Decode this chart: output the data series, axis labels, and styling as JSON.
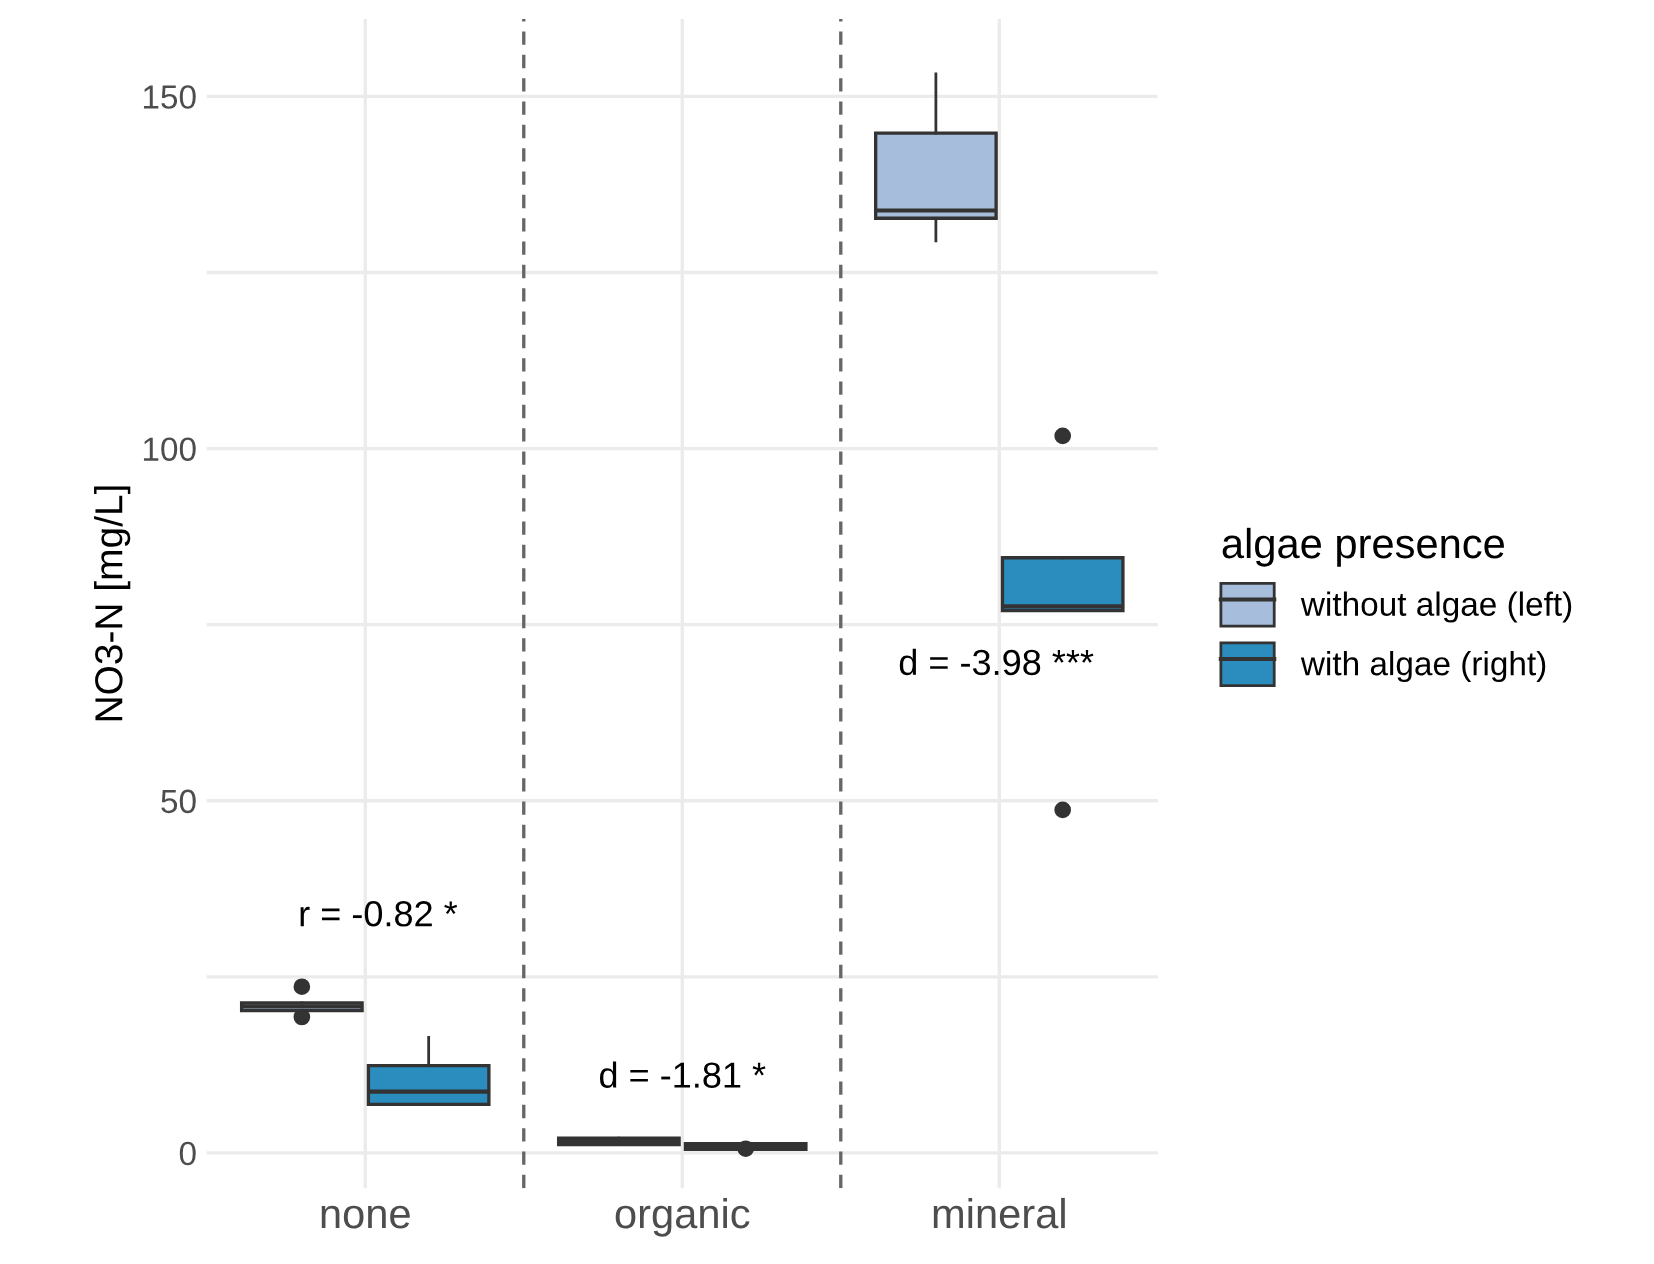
{
  "chart_data": {
    "type": "box",
    "ylabel": "NO3-N [mg/L]",
    "legend_title": "algae presence",
    "categories": [
      "none",
      "organic",
      "mineral"
    ],
    "series": [
      {
        "name": "without algae (left)",
        "color": "#a6bddb",
        "boxes": [
          {
            "low": 20.2,
            "q1": 20.2,
            "median": 20.8,
            "q3": 21.3,
            "high": 21.3,
            "outliers": [
              23.6,
              19.3
            ]
          },
          {
            "low": 1.2,
            "q1": 1.2,
            "median": 1.7,
            "q3": 2.1,
            "high": 2.1
          },
          {
            "low": 129.5,
            "q1": 132.7,
            "median": 133.8,
            "q3": 144.8,
            "high": 153.2
          }
        ]
      },
      {
        "name": "with algae (right)",
        "color": "#2b8cbe",
        "boxes": [
          {
            "low": 6.9,
            "q1": 6.9,
            "median": 8.7,
            "q3": 12.4,
            "high": 16.4
          },
          {
            "low": 0.5,
            "q1": 0.5,
            "median": 0.9,
            "q3": 1.3,
            "high": 1.3,
            "outliers": [
              0.6
            ]
          },
          {
            "low": 77.0,
            "q1": 77.0,
            "median": 77.6,
            "q3": 84.5,
            "high": 84.5,
            "outliers": [
              101.8,
              48.7
            ]
          }
        ]
      }
    ],
    "annotations": [
      "r = -0.82 *",
      "d = -1.81 *",
      "d = -3.98 ***"
    ],
    "ylim": [
      -5,
      161
    ],
    "yticks": [
      0,
      {
        "value": 25,
        "label": null
      },
      50,
      {
        "value": 75,
        "label": null
      },
      100,
      {
        "value": 125,
        "label": null
      },
      150
    ],
    "grid": true,
    "legend": "right"
  }
}
